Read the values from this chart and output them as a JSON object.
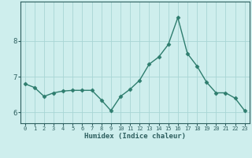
{
  "x": [
    0,
    1,
    2,
    3,
    4,
    5,
    6,
    7,
    8,
    9,
    10,
    11,
    12,
    13,
    14,
    15,
    16,
    17,
    18,
    19,
    20,
    21,
    22,
    23
  ],
  "y": [
    6.8,
    6.7,
    6.45,
    6.55,
    6.6,
    6.62,
    6.62,
    6.62,
    6.35,
    6.05,
    6.45,
    6.65,
    6.9,
    7.35,
    7.55,
    7.9,
    8.65,
    7.65,
    7.3,
    6.85,
    6.55,
    6.55,
    6.4,
    6.05
  ],
  "line_color": "#2e7d6e",
  "marker": "D",
  "marker_size": 2.5,
  "bg_color": "#ceeeed",
  "grid_color": "#a8d5d5",
  "axis_color": "#2e5f5f",
  "tick_color": "#2e5f5f",
  "xlabel": "Humidex (Indice chaleur)",
  "ylim": [
    5.7,
    9.1
  ],
  "xlim": [
    -0.5,
    23.5
  ],
  "yticks": [
    6,
    7,
    8
  ],
  "xticks": [
    0,
    1,
    2,
    3,
    4,
    5,
    6,
    7,
    8,
    9,
    10,
    11,
    12,
    13,
    14,
    15,
    16,
    17,
    18,
    19,
    20,
    21,
    22,
    23
  ],
  "xlabel_fontsize": 6.5,
  "ytick_fontsize": 6.5,
  "xtick_fontsize": 5.0,
  "linewidth": 1.0
}
